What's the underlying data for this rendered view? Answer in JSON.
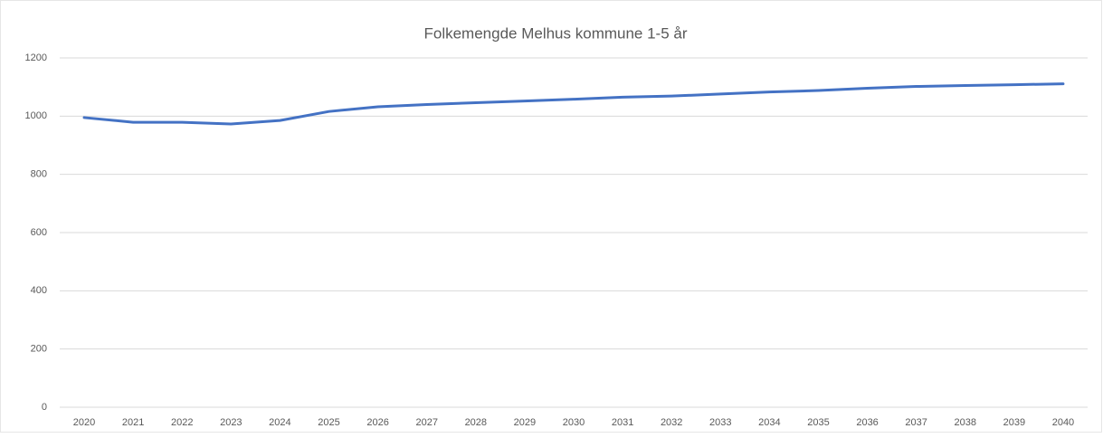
{
  "chart_data": {
    "type": "line",
    "title": "Folkemengde Melhus kommune 1-5 år",
    "categories": [
      "2020",
      "2021",
      "2022",
      "2023",
      "2024",
      "2025",
      "2026",
      "2027",
      "2028",
      "2029",
      "2030",
      "2031",
      "2032",
      "2033",
      "2034",
      "2035",
      "2036",
      "2037",
      "2038",
      "2039",
      "2040"
    ],
    "values": [
      995,
      979,
      979,
      973,
      985,
      1016,
      1032,
      1040,
      1046,
      1052,
      1058,
      1065,
      1069,
      1076,
      1083,
      1088,
      1096,
      1102,
      1105,
      1108,
      1111
    ],
    "color": "#4472c4",
    "ylim": [
      0,
      1200
    ],
    "yticks": [
      0,
      200,
      400,
      600,
      800,
      1000,
      1200
    ],
    "grid": true
  }
}
